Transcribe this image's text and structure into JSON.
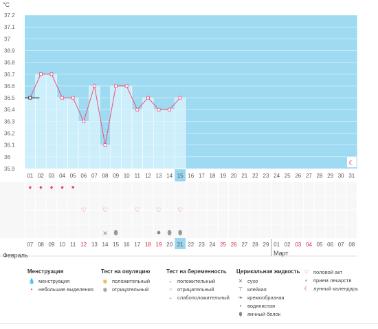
{
  "units": "°C",
  "y_ticks": [
    "37.2",
    "37.1",
    "37",
    "36.9",
    "36.8",
    "36.7",
    "36.6",
    "36.5",
    "36.4",
    "36.3",
    "36.2",
    "36.1",
    "36",
    "35.9"
  ],
  "days": [
    "01",
    "02",
    "03",
    "04",
    "05",
    "06",
    "07",
    "08",
    "09",
    "10",
    "11",
    "12",
    "13",
    "14",
    "15",
    "16",
    "17",
    "18",
    "19",
    "20",
    "21",
    "22",
    "23",
    "24",
    "25",
    "26",
    "27",
    "28",
    "29",
    "30",
    "31"
  ],
  "current_day_index": 14,
  "bottom_dates": [
    "07",
    "08",
    "09",
    "10",
    "11",
    "12",
    "13",
    "14",
    "15",
    "16",
    "17",
    "18",
    "19",
    "20",
    "21",
    "22",
    "23",
    "24",
    "25",
    "26",
    "27",
    "28",
    "29",
    "01",
    "02",
    "03",
    "04",
    "05",
    "06",
    "07",
    "08"
  ],
  "bottom_dates_red": [
    5,
    11,
    12,
    18,
    19,
    25,
    26
  ],
  "months": {
    "left": "Февраль",
    "right": "Март"
  },
  "colors": {
    "sky": "#9edaf2",
    "bar": "#cdeefb",
    "line": "#ef4e74",
    "accent": "#d8203d",
    "today": "#9ad6ef"
  },
  "chart_data": {
    "type": "line",
    "x": [
      "01",
      "02",
      "03",
      "04",
      "05",
      "06",
      "07",
      "08",
      "09",
      "10",
      "11",
      "12",
      "13",
      "14",
      "15"
    ],
    "y": [
      36.5,
      36.7,
      36.7,
      36.5,
      36.5,
      36.3,
      36.6,
      36.1,
      36.6,
      36.6,
      36.4,
      36.5,
      36.4,
      36.4,
      36.5
    ],
    "ylim": [
      35.9,
      37.2
    ],
    "ylabel": "°C"
  },
  "markers": {
    "menstruation": [
      0,
      1,
      2,
      3
    ],
    "spotting": [
      4
    ],
    "intercourse": [
      5,
      7,
      10,
      12,
      14
    ],
    "sticky": [
      7
    ],
    "egg_white": [
      8,
      13,
      14
    ],
    "watery": [
      12
    ],
    "lunar": [
      30
    ]
  },
  "legend": {
    "menstruation": {
      "title": "Менструация",
      "items": [
        "менструация",
        "небольшие выделения"
      ]
    },
    "ovulation": {
      "title": "Тест на овуляцию",
      "items": [
        "положительный",
        "отрицательный"
      ]
    },
    "pregnancy": {
      "title": "Тест на беременность",
      "items": [
        "положительный",
        "отрицательный",
        "слабоположительный"
      ]
    },
    "cervical": {
      "title": "Церикальная жидкость",
      "items": [
        "сухо",
        "клейкая",
        "кремообразная",
        "водянистая",
        "яичный белок"
      ]
    },
    "other": {
      "items": [
        "половой акт",
        "прием лекарств",
        "лунный календарь"
      ]
    }
  }
}
